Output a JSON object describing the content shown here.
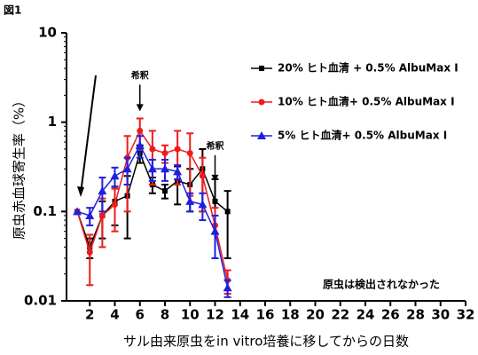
{
  "chart_data": {
    "type": "line",
    "figure_label": "図1",
    "ylabel": "原虫赤血球寄生率（%）",
    "xlabel": "サル由来原虫をin vitro培養に移してからの日数",
    "log_y": true,
    "x": [
      1,
      2,
      3,
      4,
      5,
      6,
      7,
      8,
      9,
      10,
      11,
      12,
      13
    ],
    "series": [
      {
        "name": "20% ヒト血清 + 0.5% AlbuMax I",
        "color": "#000000",
        "marker": "square",
        "values": [
          0.1,
          0.04,
          0.09,
          0.13,
          0.15,
          0.45,
          0.2,
          0.17,
          0.22,
          0.2,
          0.3,
          0.13,
          0.1
        ],
        "errors": [
          0,
          0.01,
          0.04,
          0.06,
          0.1,
          0.1,
          0.04,
          0.03,
          0.1,
          0.1,
          0.2,
          0.1,
          0.07
        ]
      },
      {
        "name": "10% ヒト血清+ 0.5% AlbuMax I",
        "color": "#ee1c1c",
        "marker": "circle",
        "values": [
          0.1,
          0.035,
          0.09,
          0.12,
          0.4,
          0.8,
          0.5,
          0.45,
          0.5,
          0.45,
          0.25,
          0.07,
          0.017
        ],
        "errors": [
          0,
          0.02,
          0.05,
          0.06,
          0.3,
          0.3,
          0.3,
          0.1,
          0.3,
          0.3,
          0.15,
          0.04,
          0.005
        ]
      },
      {
        "name": "5% ヒト血清+ 0.5% AlbuMax I",
        "color": "#1f1fe0",
        "marker": "triangle",
        "values": [
          0.1,
          0.09,
          0.17,
          0.25,
          0.3,
          0.55,
          0.3,
          0.3,
          0.28,
          0.13,
          0.12,
          0.06,
          0.014
        ],
        "errors": [
          0,
          0.02,
          0.07,
          0.06,
          0.1,
          0.15,
          0.08,
          0.08,
          0.05,
          0.03,
          0.04,
          0.03,
          0.003
        ]
      }
    ],
    "annotations": [
      {
        "text": "希釈",
        "x": 6
      },
      {
        "text": "希釈",
        "x": 12
      }
    ],
    "note": "原虫は検出されなかった",
    "xlim": [
      0,
      32
    ],
    "xticks": [
      2,
      4,
      6,
      8,
      10,
      12,
      14,
      16,
      18,
      20,
      22,
      24,
      26,
      28,
      30,
      32
    ],
    "ylim": [
      0.01,
      10
    ],
    "yticks": [
      0.01,
      0.1,
      1,
      10
    ]
  }
}
